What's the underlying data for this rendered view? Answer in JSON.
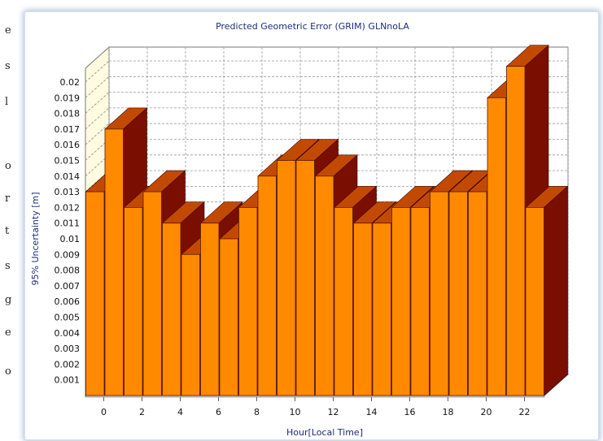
{
  "chart_data": {
    "type": "bar",
    "title": "Predicted Geometric Error (GRIM) GLNnoLA",
    "xlabel": "Hour[Local Time]",
    "ylabel": "95% Uncertainty [m]",
    "x": [
      0,
      1,
      2,
      3,
      4,
      5,
      6,
      7,
      8,
      9,
      10,
      11,
      12,
      13,
      14,
      15,
      16,
      17,
      18,
      19,
      20,
      21,
      22,
      23
    ],
    "x_tick_labels": [
      "0",
      "2",
      "4",
      "6",
      "8",
      "10",
      "12",
      "14",
      "16",
      "18",
      "20",
      "22"
    ],
    "y_tick_labels": [
      "0.001",
      "0.002",
      "0.003",
      "0.004",
      "0.005",
      "0.006",
      "0.007",
      "0.008",
      "0.009",
      "0.01",
      "0.011",
      "0.012",
      "0.013",
      "0.014",
      "0.015",
      "0.016",
      "0.017",
      "0.018",
      "0.019",
      "0.02"
    ],
    "values": [
      0.013,
      0.017,
      0.012,
      0.013,
      0.011,
      0.009,
      0.011,
      0.01,
      0.012,
      0.014,
      0.015,
      0.015,
      0.014,
      0.012,
      0.011,
      0.011,
      0.012,
      0.012,
      0.013,
      0.013,
      0.013,
      0.019,
      0.021,
      0.012
    ],
    "ylim": [
      0,
      0.021
    ],
    "grid": true,
    "colors": {
      "front": "#ff8a00",
      "top": "#c24a00",
      "side": "#7a0e00",
      "wall": "#fffbe0"
    }
  },
  "background_text": [
    "e",
    "s",
    "l",
    "o",
    "r",
    "t",
    "s",
    "g",
    "e",
    "o"
  ]
}
